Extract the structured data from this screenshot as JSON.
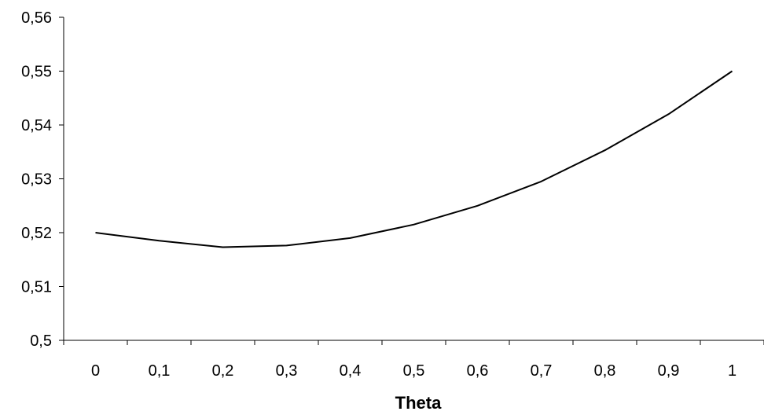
{
  "chart_data": {
    "type": "line",
    "title": "",
    "xlabel": "Theta",
    "ylabel": "",
    "categories": [
      "0",
      "0,1",
      "0,2",
      "0,3",
      "0,4",
      "0,5",
      "0,6",
      "0,7",
      "0,8",
      "0,9",
      "1"
    ],
    "series": [
      {
        "values": [
          0.52,
          0.5185,
          0.5173,
          0.5176,
          0.519,
          0.5215,
          0.525,
          0.5295,
          0.5353,
          0.542,
          0.55
        ]
      }
    ],
    "ylim": [
      0.5,
      0.56
    ],
    "yticks": [
      0.5,
      0.51,
      0.52,
      0.53,
      0.54,
      0.55,
      0.56
    ],
    "ytick_labels": [
      "0,5",
      "0,51",
      "0,52",
      "0,53",
      "0,54",
      "0,55",
      "0,56"
    ],
    "line_color": "#000000",
    "grid": false,
    "legend": "none"
  }
}
